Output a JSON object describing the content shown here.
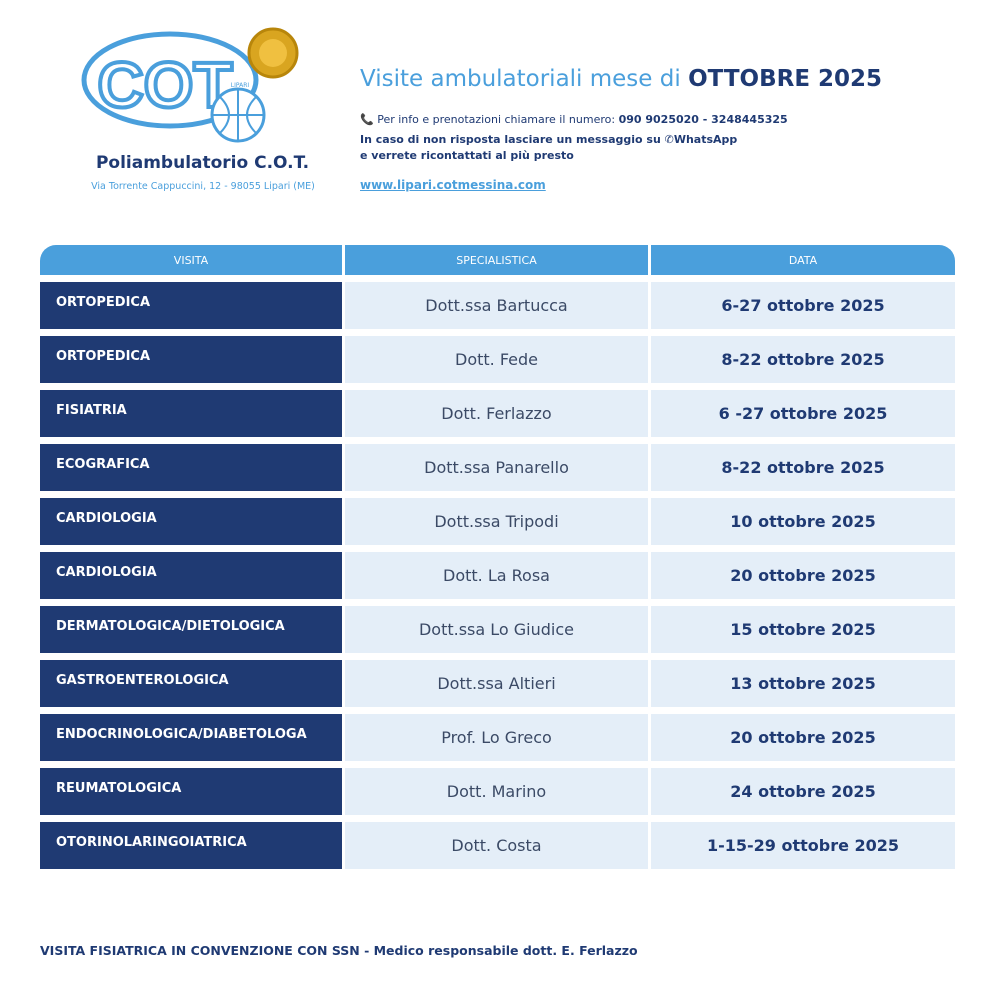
{
  "header": {
    "logo": {
      "text": "COT",
      "subtext": "LIPARI"
    },
    "name": "Poliambulatorio C.O.T.",
    "address": "Via Torrente Cappuccini, 12 - 98055 Lipari (ME)",
    "title_prefix": "Visite ambulatoriali mese di",
    "title_month": "OTTOBRE 2025",
    "phone_text": "Per info e prenotazioni chiamare il numero:",
    "phone_numbers": "090 9025020 - 3248445325",
    "message_line1": "In caso di non risposta lasciare un messaggio su",
    "message_app": "WhatsApp",
    "message_line2": "e verrete ricontattati al più presto",
    "website": "www.lipari.cotmessina.com"
  },
  "table": {
    "columns": [
      "VISITA",
      "SPECIALISTICA",
      "DATA"
    ],
    "rows": [
      [
        "ORTOPEDICA",
        "Dott.ssa Bartucca",
        "6-27 ottobre 2025"
      ],
      [
        "ORTOPEDICA",
        "Dott. Fede",
        "8-22 ottobre 2025"
      ],
      [
        "FISIATRIA",
        "Dott. Ferlazzo",
        "6 -27 ottobre 2025"
      ],
      [
        "ECOGRAFICA",
        "Dott.ssa Panarello",
        "8-22 ottobre 2025"
      ],
      [
        "CARDIOLOGIA",
        "Dott.ssa Tripodi",
        "10 ottobre 2025"
      ],
      [
        "CARDIOLOGIA",
        "Dott. La Rosa",
        "20 ottobre 2025"
      ],
      [
        "DERMATOLOGICA/DIETOLOGICA",
        "Dott.ssa Lo Giudice",
        "15 ottobre 2025"
      ],
      [
        "GASTROENTEROLOGICA",
        "Dott.ssa Altieri",
        "13 ottobre 2025"
      ],
      [
        "ENDOCRINOLOGICA/DIABETOLOGA",
        "Prof. Lo Greco",
        "20 ottobre 2025"
      ],
      [
        "REUMATOLOGICA",
        "Dott. Marino",
        "24 ottobre 2025"
      ],
      [
        "OTORINOLARINGOIATRICA",
        "Dott. Costa",
        "1-15-29 ottobre 2025"
      ]
    ]
  },
  "footer": {
    "note": "VISITA FISIATRICA IN CONVENZIONE CON SSN - Medico responsabile dott. E. Ferlazzo"
  }
}
